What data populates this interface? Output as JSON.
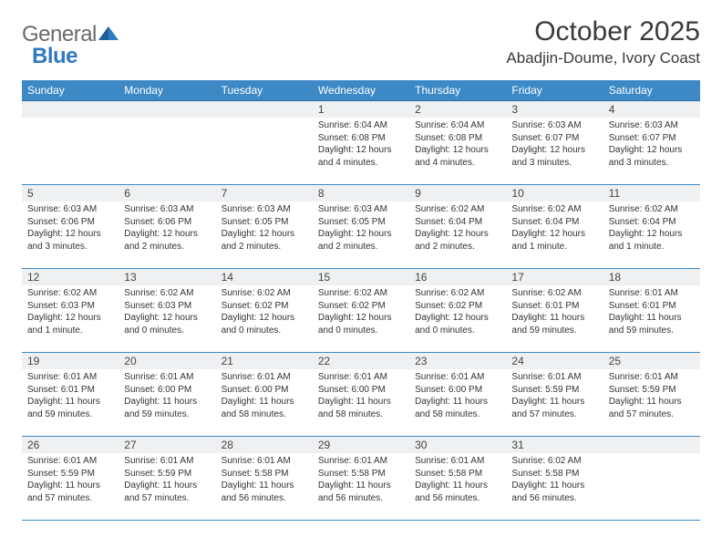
{
  "brand": {
    "word1": "General",
    "word2": "Blue",
    "word1_color": "#6a6a6a",
    "word2_color": "#2f7bbf",
    "mark_color": "#2f7bbf"
  },
  "title": "October 2025",
  "location": "Abadjin-Doume, Ivory Coast",
  "colors": {
    "header_bg": "#3c89c6",
    "header_text": "#ffffff",
    "row_divider": "#3c89c6",
    "daynum_bg": "#eef0f2",
    "body_text": "#333333",
    "page_bg": "#ffffff"
  },
  "typography": {
    "title_fontsize_pt": 22,
    "location_fontsize_pt": 13,
    "dayheader_fontsize_pt": 9,
    "daynum_fontsize_pt": 9,
    "cell_fontsize_pt": 7.5
  },
  "day_headers": [
    "Sunday",
    "Monday",
    "Tuesday",
    "Wednesday",
    "Thursday",
    "Friday",
    "Saturday"
  ],
  "weeks": [
    [
      {
        "day": "",
        "sunrise": "",
        "sunset": "",
        "daylight": ""
      },
      {
        "day": "",
        "sunrise": "",
        "sunset": "",
        "daylight": ""
      },
      {
        "day": "",
        "sunrise": "",
        "sunset": "",
        "daylight": ""
      },
      {
        "day": "1",
        "sunrise": "Sunrise: 6:04 AM",
        "sunset": "Sunset: 6:08 PM",
        "daylight": "Daylight: 12 hours and 4 minutes."
      },
      {
        "day": "2",
        "sunrise": "Sunrise: 6:04 AM",
        "sunset": "Sunset: 6:08 PM",
        "daylight": "Daylight: 12 hours and 4 minutes."
      },
      {
        "day": "3",
        "sunrise": "Sunrise: 6:03 AM",
        "sunset": "Sunset: 6:07 PM",
        "daylight": "Daylight: 12 hours and 3 minutes."
      },
      {
        "day": "4",
        "sunrise": "Sunrise: 6:03 AM",
        "sunset": "Sunset: 6:07 PM",
        "daylight": "Daylight: 12 hours and 3 minutes."
      }
    ],
    [
      {
        "day": "5",
        "sunrise": "Sunrise: 6:03 AM",
        "sunset": "Sunset: 6:06 PM",
        "daylight": "Daylight: 12 hours and 3 minutes."
      },
      {
        "day": "6",
        "sunrise": "Sunrise: 6:03 AM",
        "sunset": "Sunset: 6:06 PM",
        "daylight": "Daylight: 12 hours and 2 minutes."
      },
      {
        "day": "7",
        "sunrise": "Sunrise: 6:03 AM",
        "sunset": "Sunset: 6:05 PM",
        "daylight": "Daylight: 12 hours and 2 minutes."
      },
      {
        "day": "8",
        "sunrise": "Sunrise: 6:03 AM",
        "sunset": "Sunset: 6:05 PM",
        "daylight": "Daylight: 12 hours and 2 minutes."
      },
      {
        "day": "9",
        "sunrise": "Sunrise: 6:02 AM",
        "sunset": "Sunset: 6:04 PM",
        "daylight": "Daylight: 12 hours and 2 minutes."
      },
      {
        "day": "10",
        "sunrise": "Sunrise: 6:02 AM",
        "sunset": "Sunset: 6:04 PM",
        "daylight": "Daylight: 12 hours and 1 minute."
      },
      {
        "day": "11",
        "sunrise": "Sunrise: 6:02 AM",
        "sunset": "Sunset: 6:04 PM",
        "daylight": "Daylight: 12 hours and 1 minute."
      }
    ],
    [
      {
        "day": "12",
        "sunrise": "Sunrise: 6:02 AM",
        "sunset": "Sunset: 6:03 PM",
        "daylight": "Daylight: 12 hours and 1 minute."
      },
      {
        "day": "13",
        "sunrise": "Sunrise: 6:02 AM",
        "sunset": "Sunset: 6:03 PM",
        "daylight": "Daylight: 12 hours and 0 minutes."
      },
      {
        "day": "14",
        "sunrise": "Sunrise: 6:02 AM",
        "sunset": "Sunset: 6:02 PM",
        "daylight": "Daylight: 12 hours and 0 minutes."
      },
      {
        "day": "15",
        "sunrise": "Sunrise: 6:02 AM",
        "sunset": "Sunset: 6:02 PM",
        "daylight": "Daylight: 12 hours and 0 minutes."
      },
      {
        "day": "16",
        "sunrise": "Sunrise: 6:02 AM",
        "sunset": "Sunset: 6:02 PM",
        "daylight": "Daylight: 12 hours and 0 minutes."
      },
      {
        "day": "17",
        "sunrise": "Sunrise: 6:02 AM",
        "sunset": "Sunset: 6:01 PM",
        "daylight": "Daylight: 11 hours and 59 minutes."
      },
      {
        "day": "18",
        "sunrise": "Sunrise: 6:01 AM",
        "sunset": "Sunset: 6:01 PM",
        "daylight": "Daylight: 11 hours and 59 minutes."
      }
    ],
    [
      {
        "day": "19",
        "sunrise": "Sunrise: 6:01 AM",
        "sunset": "Sunset: 6:01 PM",
        "daylight": "Daylight: 11 hours and 59 minutes."
      },
      {
        "day": "20",
        "sunrise": "Sunrise: 6:01 AM",
        "sunset": "Sunset: 6:00 PM",
        "daylight": "Daylight: 11 hours and 59 minutes."
      },
      {
        "day": "21",
        "sunrise": "Sunrise: 6:01 AM",
        "sunset": "Sunset: 6:00 PM",
        "daylight": "Daylight: 11 hours and 58 minutes."
      },
      {
        "day": "22",
        "sunrise": "Sunrise: 6:01 AM",
        "sunset": "Sunset: 6:00 PM",
        "daylight": "Daylight: 11 hours and 58 minutes."
      },
      {
        "day": "23",
        "sunrise": "Sunrise: 6:01 AM",
        "sunset": "Sunset: 6:00 PM",
        "daylight": "Daylight: 11 hours and 58 minutes."
      },
      {
        "day": "24",
        "sunrise": "Sunrise: 6:01 AM",
        "sunset": "Sunset: 5:59 PM",
        "daylight": "Daylight: 11 hours and 57 minutes."
      },
      {
        "day": "25",
        "sunrise": "Sunrise: 6:01 AM",
        "sunset": "Sunset: 5:59 PM",
        "daylight": "Daylight: 11 hours and 57 minutes."
      }
    ],
    [
      {
        "day": "26",
        "sunrise": "Sunrise: 6:01 AM",
        "sunset": "Sunset: 5:59 PM",
        "daylight": "Daylight: 11 hours and 57 minutes."
      },
      {
        "day": "27",
        "sunrise": "Sunrise: 6:01 AM",
        "sunset": "Sunset: 5:59 PM",
        "daylight": "Daylight: 11 hours and 57 minutes."
      },
      {
        "day": "28",
        "sunrise": "Sunrise: 6:01 AM",
        "sunset": "Sunset: 5:58 PM",
        "daylight": "Daylight: 11 hours and 56 minutes."
      },
      {
        "day": "29",
        "sunrise": "Sunrise: 6:01 AM",
        "sunset": "Sunset: 5:58 PM",
        "daylight": "Daylight: 11 hours and 56 minutes."
      },
      {
        "day": "30",
        "sunrise": "Sunrise: 6:01 AM",
        "sunset": "Sunset: 5:58 PM",
        "daylight": "Daylight: 11 hours and 56 minutes."
      },
      {
        "day": "31",
        "sunrise": "Sunrise: 6:02 AM",
        "sunset": "Sunset: 5:58 PM",
        "daylight": "Daylight: 11 hours and 56 minutes."
      },
      {
        "day": "",
        "sunrise": "",
        "sunset": "",
        "daylight": ""
      }
    ]
  ]
}
